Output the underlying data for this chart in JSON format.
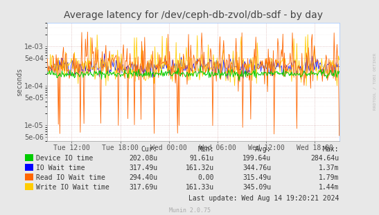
{
  "title": "Average latency for /dev/ceph-db-zvol/db-sdf - by day",
  "ylabel": "seconds",
  "background_color": "#e8e8e8",
  "plot_bg_color": "#ffffff",
  "grid_color_major": "#ddaaaa",
  "grid_color_minor": "#ffdddd",
  "border_color": "#aaaaaa",
  "x_tick_labels": [
    "Tue 12:00",
    "Tue 18:00",
    "Wed 00:00",
    "Wed 06:00",
    "Wed 12:00",
    "Wed 18:00"
  ],
  "ylim_min": 4e-06,
  "ylim_max": 0.004,
  "legend_entries": [
    {
      "label": "Device IO time",
      "color": "#00cc00"
    },
    {
      "label": "IO Wait time",
      "color": "#0000ff"
    },
    {
      "label": "Read IO Wait time",
      "color": "#ff6600"
    },
    {
      "label": "Write IO Wait time",
      "color": "#ffcc00"
    }
  ],
  "legend_stats": [
    {
      "cur": "202.08u",
      "min": "91.61u",
      "avg": "199.64u",
      "max": "284.64u"
    },
    {
      "cur": "317.49u",
      "min": "161.32u",
      "avg": "344.76u",
      "max": "1.37m"
    },
    {
      "cur": "294.40u",
      "min": "0.00",
      "avg": "315.49u",
      "max": "1.79m"
    },
    {
      "cur": "317.69u",
      "min": "161.33u",
      "avg": "345.09u",
      "max": "1.44m"
    }
  ],
  "last_update": "Last update: Wed Aug 14 19:20:21 2024",
  "munin_version": "Munin 2.0.75",
  "rrdtool_label": "RRDTOOL / TOBI OETIKER",
  "title_fontsize": 10,
  "axis_fontsize": 7,
  "legend_fontsize": 7
}
